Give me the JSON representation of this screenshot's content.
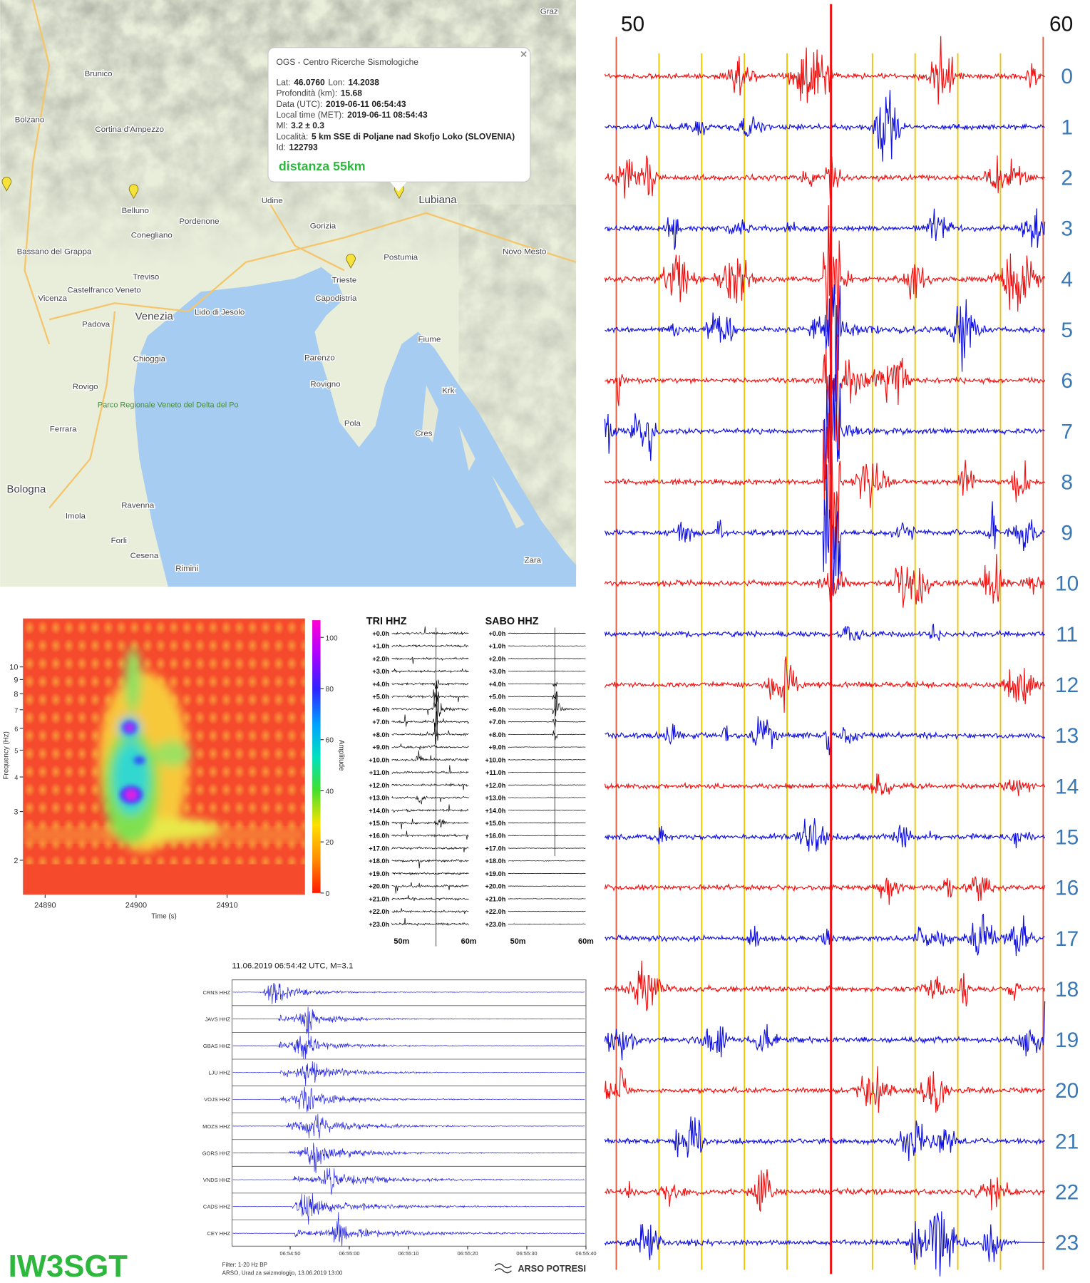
{
  "map": {
    "popup": {
      "source": "OGS - Centro Ricerche Sismologiche",
      "lines": [
        [
          [
            "Lat:",
            "46.0760"
          ],
          [
            "Lon:",
            "14.2038"
          ]
        ],
        [
          [
            "Profondità (km):",
            "15.68"
          ]
        ],
        [
          [
            "Data (UTC):",
            "2019-06-11 06:54:43"
          ]
        ],
        [
          [
            "Local time (MET):",
            "2019-06-11 08:54:43"
          ]
        ],
        [
          [
            "Ml:",
            "3.2 ± 0.3"
          ]
        ],
        [
          [
            "Località:",
            "5 km SSE di Poljane nad Skofjo Loko (SLOVENIA)"
          ]
        ],
        [
          [
            "Id:",
            "122793"
          ]
        ]
      ],
      "distance": "distanza 55km"
    },
    "places": [
      "Graz",
      "Brunico",
      "Bolzano",
      "Cortina d'Ampezzo",
      "Belluno",
      "Udine",
      "Lubiana",
      "Pordenone",
      "Conegliano",
      "Gorizia",
      "Novo Mesto",
      "Treviso",
      "Trieste",
      "Bassano del Grappa",
      "Castelfranco Veneto",
      "Venezia",
      "Vicenza",
      "Padova",
      "Lido di Jesolo",
      "Capodistria",
      "Postumia",
      "Fiume",
      "Chioggia",
      "Rovigo",
      "Parenzo",
      "Rovigno",
      "Pola",
      "Cres",
      "Krk",
      "Ferrara",
      "Bologna",
      "Ravenna",
      "Imola",
      "Forli",
      "Cesena",
      "Rimini",
      "Zara",
      "Parco Regionale Veneto del Delta del Po"
    ]
  },
  "helicorder": {
    "minute_labels": [
      50,
      60
    ],
    "hours": [
      0,
      1,
      2,
      3,
      4,
      5,
      6,
      7,
      8,
      9,
      10,
      11,
      12,
      13,
      14,
      15,
      16,
      17,
      18,
      19,
      20,
      21,
      22,
      23
    ]
  },
  "spectrogram": {
    "xlabel": "Time (s)",
    "ylabel": "Frequency (Hz)",
    "xticks": [
      24890,
      24900,
      24910
    ],
    "yticks": [
      2,
      3,
      4,
      5,
      6,
      7,
      8,
      9,
      10
    ],
    "colorbar_label": "Amplitude",
    "colorbar_ticks": [
      0,
      20,
      40,
      60,
      80,
      100
    ]
  },
  "station_helicorders": {
    "stations": [
      "TRI HHZ",
      "SABO HHZ"
    ],
    "hour_labels": [
      "+0.0h",
      "+1.0h",
      "+2.0h",
      "+3.0h",
      "+4.0h",
      "+5.0h",
      "+6.0h",
      "+7.0h",
      "+8.0h",
      "+9.0h",
      "+10.0h",
      "+11.0h",
      "+12.0h",
      "+13.0h",
      "+14.0h",
      "+15.0h",
      "+16.0h",
      "+17.0h",
      "+18.0h",
      "+19.0h",
      "+20.0h",
      "+21.0h",
      "+22.0h",
      "+23.0h"
    ],
    "x_labels": [
      "50m",
      "60m"
    ]
  },
  "record_section": {
    "title": "11.06.2019  06:54:42 UTC, M=3.1",
    "stations": [
      "CRNS HHZ",
      "JAVS HHZ",
      "GBAS HHZ",
      "LJU HHZ",
      "VOJS HHZ",
      "MOZS HHZ",
      "GORS HHZ",
      "VNDS HHZ",
      "CADS HHZ",
      "CEY HHZ"
    ],
    "time_ticks": [
      "06:54:50",
      "06:55:00",
      "06:55:10",
      "06:55:20",
      "06:55:30",
      "06:55:40"
    ],
    "filter": "Filter: 1-20 Hz BP",
    "credit": "ARSO, Urad za seizmologijo, 13.06.2019  13:00",
    "logo": "ARSO POTRESI"
  },
  "callsign": "IW3SGT"
}
